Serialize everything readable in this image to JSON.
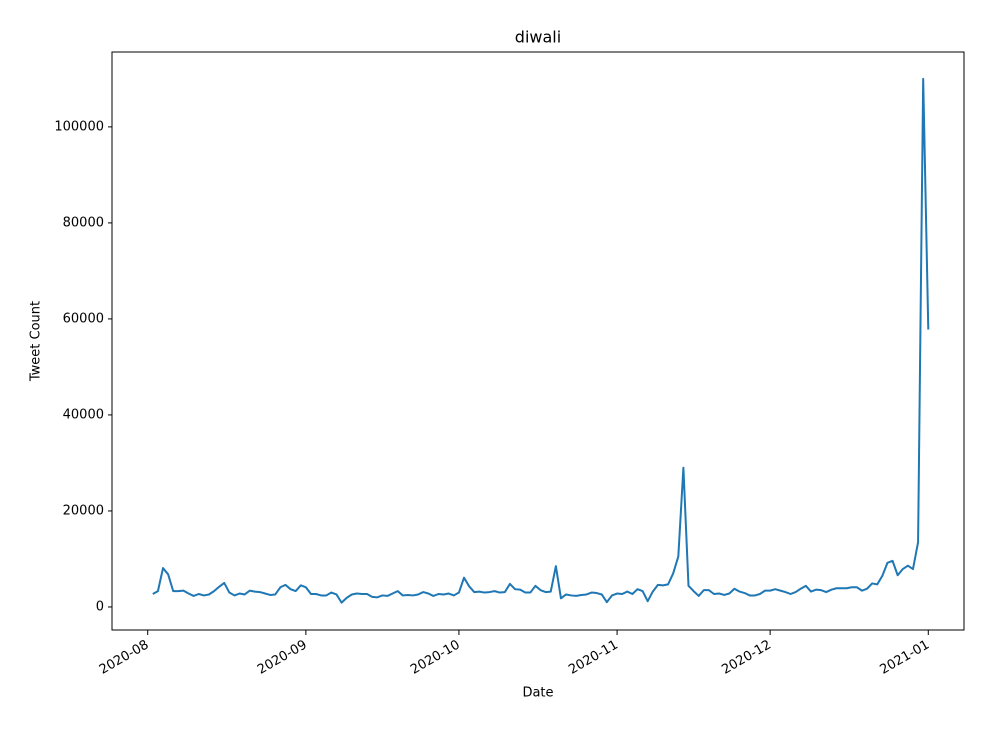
{
  "chart_data": {
    "type": "line",
    "title": "diwali",
    "x_label": "Date",
    "y_label": "Tweet Count",
    "color": "#1f77b4",
    "x": [
      "2020-08-02",
      "2020-08-03",
      "2020-08-04",
      "2020-08-05",
      "2020-08-06",
      "2020-08-07",
      "2020-08-08",
      "2020-08-09",
      "2020-08-10",
      "2020-08-11",
      "2020-08-12",
      "2020-08-13",
      "2020-08-14",
      "2020-08-15",
      "2020-08-16",
      "2020-08-17",
      "2020-08-18",
      "2020-08-19",
      "2020-08-20",
      "2020-08-21",
      "2020-08-22",
      "2020-08-23",
      "2020-08-24",
      "2020-08-25",
      "2020-08-26",
      "2020-08-27",
      "2020-08-28",
      "2020-08-29",
      "2020-08-30",
      "2020-08-31",
      "2020-09-01",
      "2020-09-02",
      "2020-09-03",
      "2020-09-04",
      "2020-09-05",
      "2020-09-06",
      "2020-09-07",
      "2020-09-08",
      "2020-09-09",
      "2020-09-10",
      "2020-09-11",
      "2020-09-12",
      "2020-09-13",
      "2020-09-14",
      "2020-09-15",
      "2020-09-16",
      "2020-09-17",
      "2020-09-18",
      "2020-09-19",
      "2020-09-20",
      "2020-09-21",
      "2020-09-22",
      "2020-09-23",
      "2020-09-24",
      "2020-09-25",
      "2020-09-26",
      "2020-09-27",
      "2020-09-28",
      "2020-09-29",
      "2020-09-30",
      "2020-10-01",
      "2020-10-02",
      "2020-10-03",
      "2020-10-04",
      "2020-10-05",
      "2020-10-06",
      "2020-10-07",
      "2020-10-08",
      "2020-10-09",
      "2020-10-10",
      "2020-10-11",
      "2020-10-12",
      "2020-10-13",
      "2020-10-14",
      "2020-10-15",
      "2020-10-16",
      "2020-10-17",
      "2020-10-18",
      "2020-10-19",
      "2020-10-20",
      "2020-10-21",
      "2020-10-22",
      "2020-10-23",
      "2020-10-24",
      "2020-10-25",
      "2020-10-26",
      "2020-10-27",
      "2020-10-28",
      "2020-10-29",
      "2020-10-30",
      "2020-10-31",
      "2020-11-01",
      "2020-11-02",
      "2020-11-03",
      "2020-11-04",
      "2020-11-05",
      "2020-11-06",
      "2020-11-07",
      "2020-11-08",
      "2020-11-09",
      "2020-11-10",
      "2020-11-11",
      "2020-11-12",
      "2020-11-13",
      "2020-11-14",
      "2020-11-15",
      "2020-11-16",
      "2020-11-17",
      "2020-11-18",
      "2020-11-19",
      "2020-11-20",
      "2020-11-21",
      "2020-11-22",
      "2020-11-23",
      "2020-11-24",
      "2020-11-25",
      "2020-11-26",
      "2020-11-27",
      "2020-11-28",
      "2020-11-29",
      "2020-11-30",
      "2020-12-01",
      "2020-12-02",
      "2020-12-03",
      "2020-12-04",
      "2020-12-05",
      "2020-12-06",
      "2020-12-07",
      "2020-12-08",
      "2020-12-09",
      "2020-12-10",
      "2020-12-11",
      "2020-12-12",
      "2020-12-13",
      "2020-12-14",
      "2020-12-15",
      "2020-12-16",
      "2020-12-17",
      "2020-12-18",
      "2020-12-19",
      "2020-12-20",
      "2020-12-21",
      "2020-12-22",
      "2020-12-23",
      "2020-12-24",
      "2020-12-25",
      "2020-12-26",
      "2020-12-27",
      "2020-12-28",
      "2020-12-29",
      "2020-12-30",
      "2020-12-31",
      "2021-01-01"
    ],
    "values": [
      2700,
      3300,
      8100,
      6800,
      3300,
      3300,
      3400,
      2800,
      2300,
      2700,
      2400,
      2600,
      3300,
      4200,
      5000,
      3000,
      2400,
      2800,
      2600,
      3400,
      3200,
      3100,
      2800,
      2500,
      2600,
      4100,
      4600,
      3700,
      3300,
      4500,
      4100,
      2700,
      2700,
      2400,
      2400,
      3000,
      2600,
      900,
      1900,
      2600,
      2800,
      2700,
      2700,
      2100,
      2000,
      2400,
      2300,
      2800,
      3300,
      2400,
      2500,
      2400,
      2600,
      3100,
      2800,
      2300,
      2700,
      2600,
      2800,
      2400,
      3000,
      6100,
      4300,
      3100,
      3200,
      3000,
      3100,
      3300,
      3000,
      3100,
      4800,
      3700,
      3600,
      3000,
      3000,
      4400,
      3500,
      3100,
      3200,
      8500,
      1800,
      2600,
      2400,
      2300,
      2500,
      2600,
      3000,
      2900,
      2600,
      1000,
      2400,
      2800,
      2700,
      3200,
      2700,
      3700,
      3300,
      1200,
      3200,
      4600,
      4500,
      4700,
      7000,
      10500,
      29000,
      4400,
      3300,
      2300,
      3500,
      3500,
      2700,
      2800,
      2500,
      2800,
      3800,
      3200,
      2900,
      2400,
      2400,
      2700,
      3400,
      3400,
      3700,
      3400,
      3100,
      2700,
      3100,
      3800,
      4400,
      3200,
      3600,
      3500,
      3100,
      3600,
      3900,
      3900,
      3900,
      4100,
      4100,
      3400,
      3800,
      4900,
      4700,
      6500,
      9200,
      9600,
      6600,
      7900,
      8600,
      7900,
      13500,
      110000,
      57800
    ],
    "xlim": [
      "2020-07-25",
      "2021-01-08"
    ],
    "xticks": [
      {
        "value": "2020-08-01",
        "label": "2020-08"
      },
      {
        "value": "2020-09-01",
        "label": "2020-09"
      },
      {
        "value": "2020-10-01",
        "label": "2020-10"
      },
      {
        "value": "2020-11-01",
        "label": "2020-11"
      },
      {
        "value": "2020-12-01",
        "label": "2020-12"
      },
      {
        "value": "2021-01-01",
        "label": "2021-01"
      }
    ],
    "ylim": [
      -4800,
      115600
    ],
    "yticks": [
      0,
      20000,
      40000,
      60000,
      80000,
      100000
    ],
    "grid": false
  }
}
